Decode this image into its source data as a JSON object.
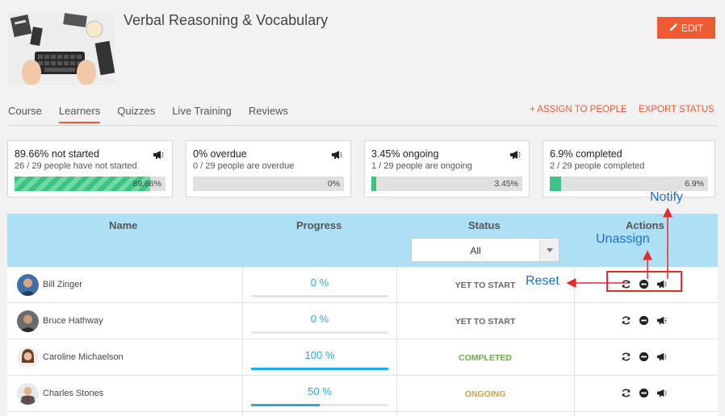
{
  "course": {
    "title": "Verbal Reasoning & Vocabulary",
    "edit_label": "EDIT"
  },
  "tabs": [
    {
      "label": "Course",
      "active": false
    },
    {
      "label": "Learners",
      "active": true
    },
    {
      "label": "Quizzes",
      "active": false
    },
    {
      "label": "Live Training",
      "active": false
    },
    {
      "label": "Reviews",
      "active": false
    }
  ],
  "header_links": {
    "assign": "+ ASSIGN TO PEOPLE",
    "export": "EXPORT STATUS"
  },
  "stats": [
    {
      "title": "89.66% not started",
      "subtitle": "26 / 29 people have not started",
      "percent_label": "89.66%",
      "fill_fraction": 0.8966,
      "striped": true
    },
    {
      "title": "0% overdue",
      "subtitle": "0 / 29 people are overdue",
      "percent_label": "0%",
      "fill_fraction": 0,
      "striped": false
    },
    {
      "title": "3.45% ongoing",
      "subtitle": "1 / 29 people are ongoing",
      "percent_label": "3.45%",
      "fill_fraction": 0.0345,
      "striped": false
    },
    {
      "title": "6.9% completed",
      "subtitle": "2 / 29 people completed",
      "percent_label": "6.9%",
      "fill_fraction": 0.069,
      "striped": false
    }
  ],
  "table": {
    "headers": {
      "name": "Name",
      "progress": "Progress",
      "status": "Status",
      "actions": "Actions"
    },
    "status_filter": "All",
    "rows": [
      {
        "name": "Bill Zinger",
        "progress_label": "0 %",
        "progress": 0,
        "status": "YET TO START",
        "status_color": "#666666"
      },
      {
        "name": "Bruce Hathway",
        "progress_label": "0 %",
        "progress": 0,
        "status": "YET TO START",
        "status_color": "#666666"
      },
      {
        "name": "Caroline Michaelson",
        "progress_label": "100 %",
        "progress": 1,
        "status": "COMPLETED",
        "status_color": "#6aa84f"
      },
      {
        "name": "Charles Stones",
        "progress_label": "50 %",
        "progress": 0.5,
        "status": "ONGOING",
        "status_color": "#c9a055"
      }
    ]
  },
  "annotations": {
    "notify": "Notify",
    "unassign": "Unassign",
    "reset": "Reset"
  },
  "colors": {
    "accent": "#ee5a34",
    "header_bg": "#aee0f5",
    "progress_blue": "#1eaee4",
    "stat_green": "#3cc383",
    "annotation_red": "#e52b2b",
    "annotation_blue": "#1e6fc4"
  },
  "icons": [
    "pencil-icon",
    "megaphone-icon",
    "reset-icon",
    "unassign-icon",
    "notify-icon",
    "chevron-down-icon"
  ]
}
